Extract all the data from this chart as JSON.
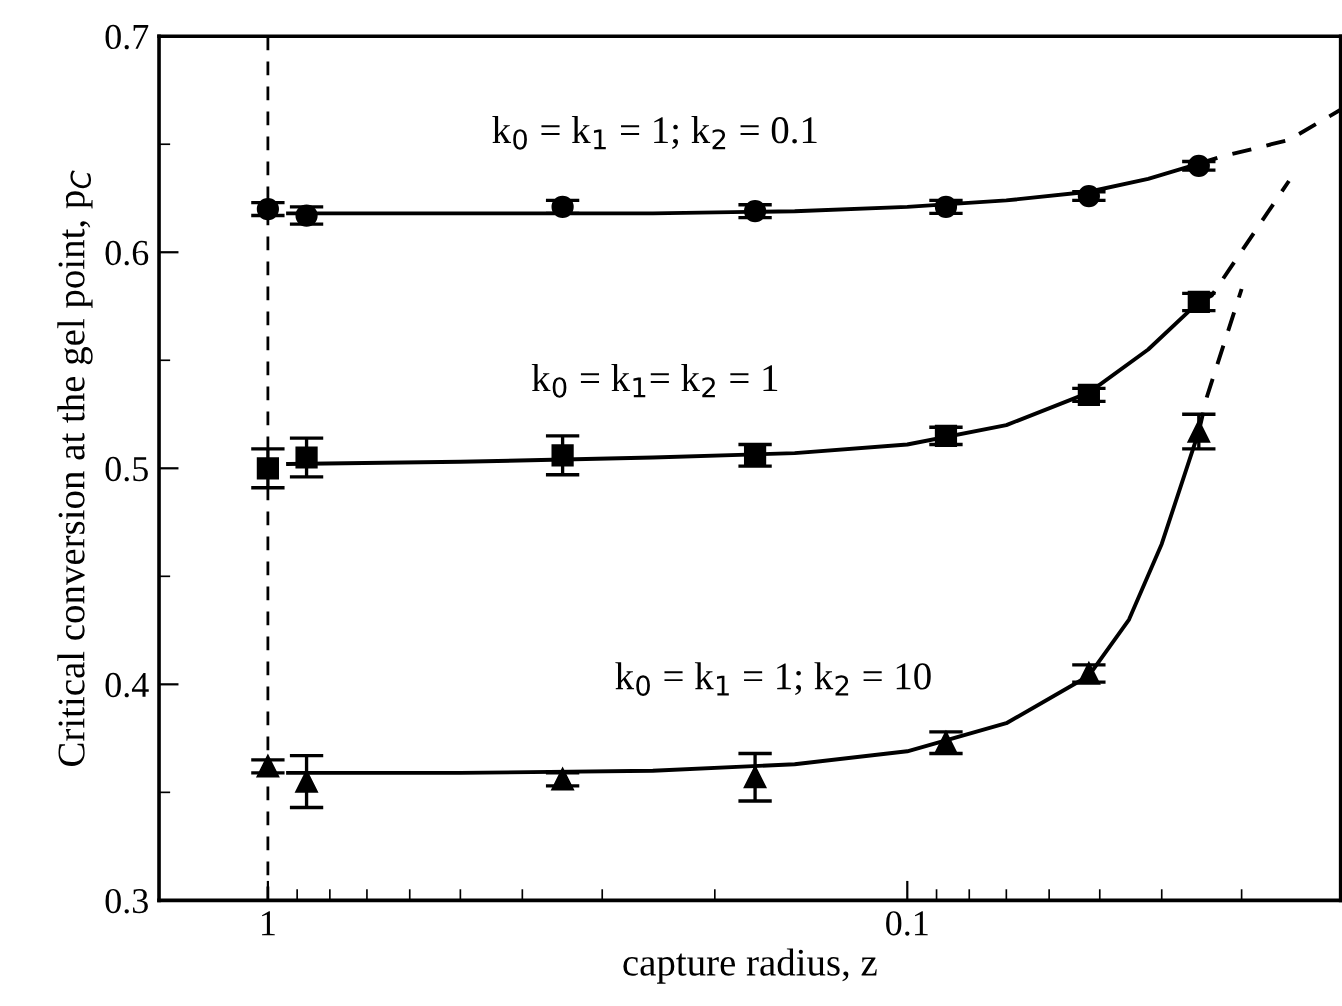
{
  "chart_data": {
    "type": "scatter",
    "xlabel": "capture radius, z",
    "ylabel": "Critical conversion at the gel point, p$_{C}$",
    "log": "x",
    "xlim": [
      1.48,
      0.021
    ],
    "xticks": [
      1,
      0.1
    ],
    "ylim": [
      0.3,
      0.7
    ],
    "yticks": [
      0.3,
      0.4,
      0.5,
      0.6,
      0.7
    ],
    "grid": false,
    "legend": false,
    "x": [
      1,
      0.87,
      0.346,
      0.173,
      0.087,
      0.052,
      0.035
    ],
    "series": [
      {
        "color": "#000000",
        "marker": "circle",
        "values": [
          0.62,
          0.617,
          0.621,
          0.619,
          0.621,
          0.626,
          0.64
        ],
        "errors": [
          0.003,
          0.004,
          0.003,
          0.003,
          0.003,
          0.002,
          0.002
        ]
      },
      {
        "color": "#000000",
        "marker": "square",
        "values": [
          0.5,
          0.505,
          0.506,
          0.506,
          0.515,
          0.534,
          0.577
        ],
        "errors": [
          0.009,
          0.009,
          0.009,
          0.005,
          0.004,
          0.003,
          0.004
        ]
      },
      {
        "color": "#000000",
        "marker": "triangle",
        "values": [
          0.362,
          0.355,
          0.356,
          0.357,
          0.373,
          0.405,
          0.517
        ],
        "errors": [
          0.003,
          0.012,
          0.003,
          0.011,
          0.005,
          0.004,
          0.008
        ]
      },
      {
        "type": "line",
        "color": "#000000",
        "line_style": "solid",
        "marker": "none",
        "x": [
          0.93,
          0.5,
          0.25,
          0.15,
          0.1,
          0.07,
          0.052,
          0.042,
          0.035
        ],
        "values": [
          0.618,
          0.618,
          0.618,
          0.619,
          0.621,
          0.624,
          0.628,
          0.634,
          0.641
        ]
      },
      {
        "type": "line",
        "color": "#000000",
        "line_style": "solid",
        "marker": "none",
        "x": [
          0.93,
          0.5,
          0.25,
          0.15,
          0.1,
          0.07,
          0.052,
          0.042,
          0.035
        ],
        "values": [
          0.502,
          0.503,
          0.505,
          0.507,
          0.511,
          0.52,
          0.535,
          0.555,
          0.577
        ]
      },
      {
        "type": "line",
        "color": "#000000",
        "line_style": "solid",
        "marker": "none",
        "x": [
          0.93,
          0.5,
          0.25,
          0.15,
          0.1,
          0.07,
          0.052,
          0.045,
          0.04,
          0.035
        ],
        "values": [
          0.359,
          0.359,
          0.36,
          0.363,
          0.369,
          0.382,
          0.404,
          0.43,
          0.465,
          0.517
        ]
      },
      {
        "type": "line",
        "color": "#000000",
        "line_style": "dashed",
        "marker": "none",
        "x": [
          0.035,
          0.0325,
          0.0253,
          0.021
        ],
        "values": [
          0.641,
          0.644,
          0.652,
          0.666
        ]
      },
      {
        "type": "line",
        "color": "#000000",
        "line_style": "dashed",
        "marker": "none",
        "x": [
          0.035,
          0.0334,
          0.0253
        ],
        "values": [
          0.577,
          0.58,
          0.633
        ]
      },
      {
        "type": "line",
        "color": "#000000",
        "line_style": "dashed",
        "marker": "none",
        "x": [
          0.035,
          0.034,
          0.03
        ],
        "values": [
          0.517,
          0.533,
          0.583
        ]
      }
    ],
    "ref_lines": [
      {
        "axis": "x",
        "value": 1,
        "color": "#000000",
        "line_style": "dashed"
      }
    ],
    "annotations": [
      "k$_{0}$ = k$_{1}$ = 1; k$_{2}$ = 0.1",
      "k$_{0}$ = k$_{1}$= k$_{2}$ = 1",
      "k$_{0}$ = k$_{1}$ = 1; k$_{2}$ = 10"
    ]
  }
}
